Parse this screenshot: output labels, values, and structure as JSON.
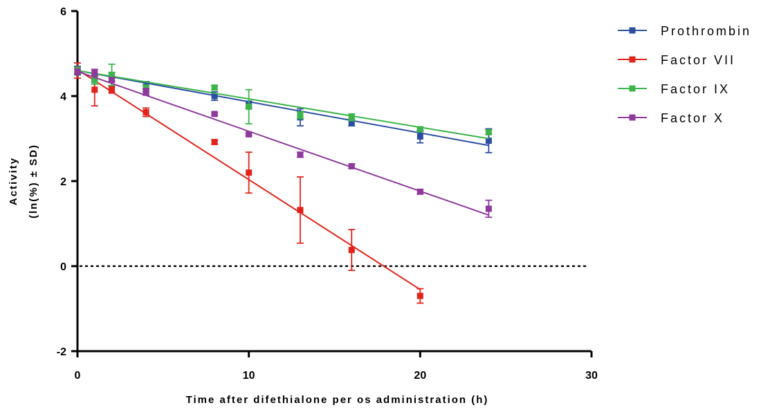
{
  "chart_data": {
    "type": "scatter",
    "title": "",
    "xlabel": "Time after difethialone per os administration (h)",
    "ylabel_lines": [
      "Activity",
      "(ln(%) ± SD)"
    ],
    "xlim": [
      0,
      30
    ],
    "ylim": [
      -2,
      6
    ],
    "x_ticks": [
      0,
      10,
      20,
      30
    ],
    "y_ticks": [
      -2,
      0,
      2,
      4,
      6
    ],
    "x_tick_labels": [
      "0",
      "10",
      "20",
      "30"
    ],
    "y_tick_labels": [
      "-2",
      "0",
      "2",
      "4",
      "6"
    ],
    "grid": false,
    "legend_position": "top-right",
    "reference_line": {
      "y": 0,
      "style": "dotted"
    },
    "series": [
      {
        "name": "Prothrombin",
        "color": "#2b4ea2",
        "x": [
          0,
          1,
          2,
          4,
          8,
          10,
          13,
          16,
          20,
          24
        ],
        "y": [
          4.6,
          4.4,
          4.45,
          4.22,
          4.0,
          3.8,
          3.5,
          3.38,
          3.05,
          2.95
        ],
        "sd": [
          0.1,
          0.08,
          0.1,
          0.12,
          0.1,
          0.08,
          0.2,
          0.08,
          0.15,
          0.28
        ],
        "fit": [
          [
            0,
            4.6
          ],
          [
            24,
            2.84
          ]
        ]
      },
      {
        "name": "Factor VII",
        "color": "#e2231a",
        "x": [
          0,
          1,
          2,
          4,
          8,
          10,
          13,
          16,
          20
        ],
        "y": [
          4.6,
          4.15,
          4.15,
          3.62,
          2.92,
          2.2,
          1.32,
          0.38,
          -0.7
        ],
        "sd": [
          0.18,
          0.38,
          0.08,
          0.1,
          0.05,
          0.48,
          0.78,
          0.48,
          0.17
        ],
        "fit": [
          [
            0,
            4.62
          ],
          [
            20,
            -0.55
          ]
        ]
      },
      {
        "name": "Factor IX",
        "color": "#3cb44b",
        "x": [
          0,
          1,
          2,
          4,
          8,
          10,
          13,
          16,
          20,
          24
        ],
        "y": [
          4.62,
          4.38,
          4.5,
          4.2,
          4.2,
          3.75,
          3.55,
          3.5,
          3.22,
          3.15
        ],
        "sd": [
          0.05,
          0.1,
          0.25,
          0.05,
          0.05,
          0.4,
          0.08,
          0.08,
          0.05,
          0.05
        ],
        "fit": [
          [
            0,
            4.6
          ],
          [
            24,
            3.0
          ]
        ]
      },
      {
        "name": "Factor X",
        "color": "#8e3a9d",
        "x": [
          0,
          1,
          2,
          4,
          8,
          10,
          13,
          16,
          20,
          24
        ],
        "y": [
          4.58,
          4.55,
          4.38,
          4.1,
          3.58,
          3.1,
          2.62,
          2.35,
          1.75,
          1.35
        ],
        "sd": [
          0.05,
          0.08,
          0.05,
          0.08,
          0.03,
          0.03,
          0.06,
          0.05,
          0.05,
          0.2
        ],
        "fit": [
          [
            0,
            4.58
          ],
          [
            24,
            1.2
          ]
        ]
      }
    ]
  }
}
